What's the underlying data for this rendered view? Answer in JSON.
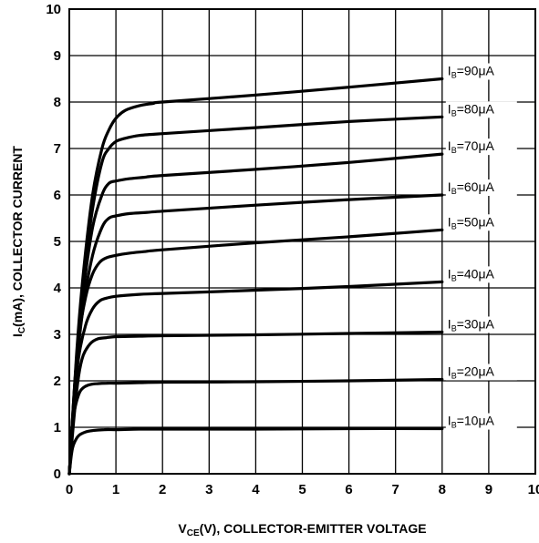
{
  "chart_data": {
    "type": "line",
    "title": "",
    "xlabel_main": "V",
    "xlabel_sub": "CE",
    "xlabel_rest": "(V), COLLECTOR-EMITTER VOLTAGE",
    "ylabel_main": "I",
    "ylabel_sub": "C",
    "ylabel_rest": "(mA), COLLECTOR CURRENT",
    "xlim": [
      0,
      10
    ],
    "ylim": [
      0,
      10
    ],
    "xticks": [
      "0",
      "1",
      "2",
      "3",
      "4",
      "5",
      "6",
      "7",
      "8",
      "9",
      "10"
    ],
    "yticks": [
      "0",
      "1",
      "2",
      "3",
      "4",
      "5",
      "6",
      "7",
      "8",
      "9",
      "10"
    ],
    "grid": true,
    "series": [
      {
        "label_prefix": "I",
        "label_sub": "B",
        "label_value": "=10μA",
        "x": [
          0,
          0.05,
          0.1,
          0.2,
          0.35,
          0.5,
          0.75,
          1.0,
          1.5,
          2,
          4,
          6,
          8
        ],
        "y": [
          0,
          0.45,
          0.65,
          0.82,
          0.9,
          0.93,
          0.95,
          0.95,
          0.96,
          0.96,
          0.96,
          0.97,
          0.97
        ]
      },
      {
        "label_prefix": "I",
        "label_sub": "B",
        "label_value": "=20μA",
        "x": [
          0,
          0.05,
          0.1,
          0.2,
          0.3,
          0.45,
          0.6,
          0.8,
          1.0,
          1.5,
          2,
          4,
          6,
          8
        ],
        "y": [
          0,
          0.8,
          1.3,
          1.7,
          1.85,
          1.92,
          1.94,
          1.95,
          1.95,
          1.96,
          1.97,
          1.98,
          2.0,
          2.03
        ]
      },
      {
        "label_prefix": "I",
        "label_sub": "B",
        "label_value": "=30μA",
        "x": [
          0,
          0.1,
          0.2,
          0.3,
          0.45,
          0.6,
          0.8,
          1.0,
          1.5,
          2,
          4,
          6,
          8
        ],
        "y": [
          0,
          1.2,
          2.1,
          2.55,
          2.8,
          2.9,
          2.93,
          2.95,
          2.96,
          2.97,
          2.99,
          3.02,
          3.05
        ]
      },
      {
        "label_prefix": "I",
        "label_sub": "B",
        "label_value": "=40μA",
        "x": [
          0,
          0.1,
          0.2,
          0.35,
          0.5,
          0.65,
          0.8,
          1.0,
          1.5,
          2,
          4,
          6,
          8
        ],
        "y": [
          0,
          1.5,
          2.5,
          3.2,
          3.55,
          3.72,
          3.78,
          3.82,
          3.86,
          3.88,
          3.95,
          4.03,
          4.13
        ]
      },
      {
        "label_prefix": "I",
        "label_sub": "B",
        "label_value": "=50μA",
        "x": [
          0,
          0.1,
          0.2,
          0.35,
          0.5,
          0.65,
          0.8,
          1.0,
          1.3,
          1.6,
          2,
          4,
          6,
          8
        ],
        "y": [
          0,
          1.7,
          2.9,
          3.8,
          4.3,
          4.55,
          4.65,
          4.7,
          4.75,
          4.78,
          4.82,
          4.97,
          5.1,
          5.25
        ]
      },
      {
        "label_prefix": "I",
        "label_sub": "B",
        "label_value": "=60μA",
        "x": [
          0,
          0.15,
          0.3,
          0.5,
          0.7,
          0.85,
          1.0,
          1.3,
          1.6,
          2,
          4,
          6,
          8
        ],
        "y": [
          0,
          2.2,
          3.6,
          4.7,
          5.3,
          5.5,
          5.55,
          5.6,
          5.62,
          5.65,
          5.78,
          5.9,
          6.0
        ]
      },
      {
        "label_prefix": "I",
        "label_sub": "B",
        "label_value": "=70μA",
        "x": [
          0,
          0.15,
          0.3,
          0.5,
          0.7,
          0.85,
          1.0,
          1.3,
          1.6,
          2,
          4,
          6,
          8
        ],
        "y": [
          0,
          2.3,
          3.9,
          5.3,
          6.0,
          6.25,
          6.3,
          6.35,
          6.38,
          6.42,
          6.55,
          6.7,
          6.88
        ]
      },
      {
        "label_prefix": "I",
        "label_sub": "B",
        "label_value": "=80μA",
        "x": [
          0,
          0.15,
          0.3,
          0.5,
          0.7,
          0.85,
          1.0,
          1.2,
          1.5,
          2,
          4,
          6,
          8
        ],
        "y": [
          0,
          2.4,
          4.1,
          5.7,
          6.7,
          7.0,
          7.15,
          7.22,
          7.28,
          7.32,
          7.45,
          7.58,
          7.68
        ]
      },
      {
        "label_prefix": "I",
        "label_sub": "B",
        "label_value": "=90μA",
        "x": [
          0,
          0.15,
          0.3,
          0.5,
          0.7,
          0.85,
          1.0,
          1.2,
          1.5,
          1.8,
          2,
          4,
          6,
          8
        ],
        "y": [
          0,
          2.5,
          4.3,
          6.0,
          7.0,
          7.4,
          7.65,
          7.82,
          7.92,
          7.97,
          8.0,
          8.15,
          8.32,
          8.5
        ]
      }
    ]
  }
}
